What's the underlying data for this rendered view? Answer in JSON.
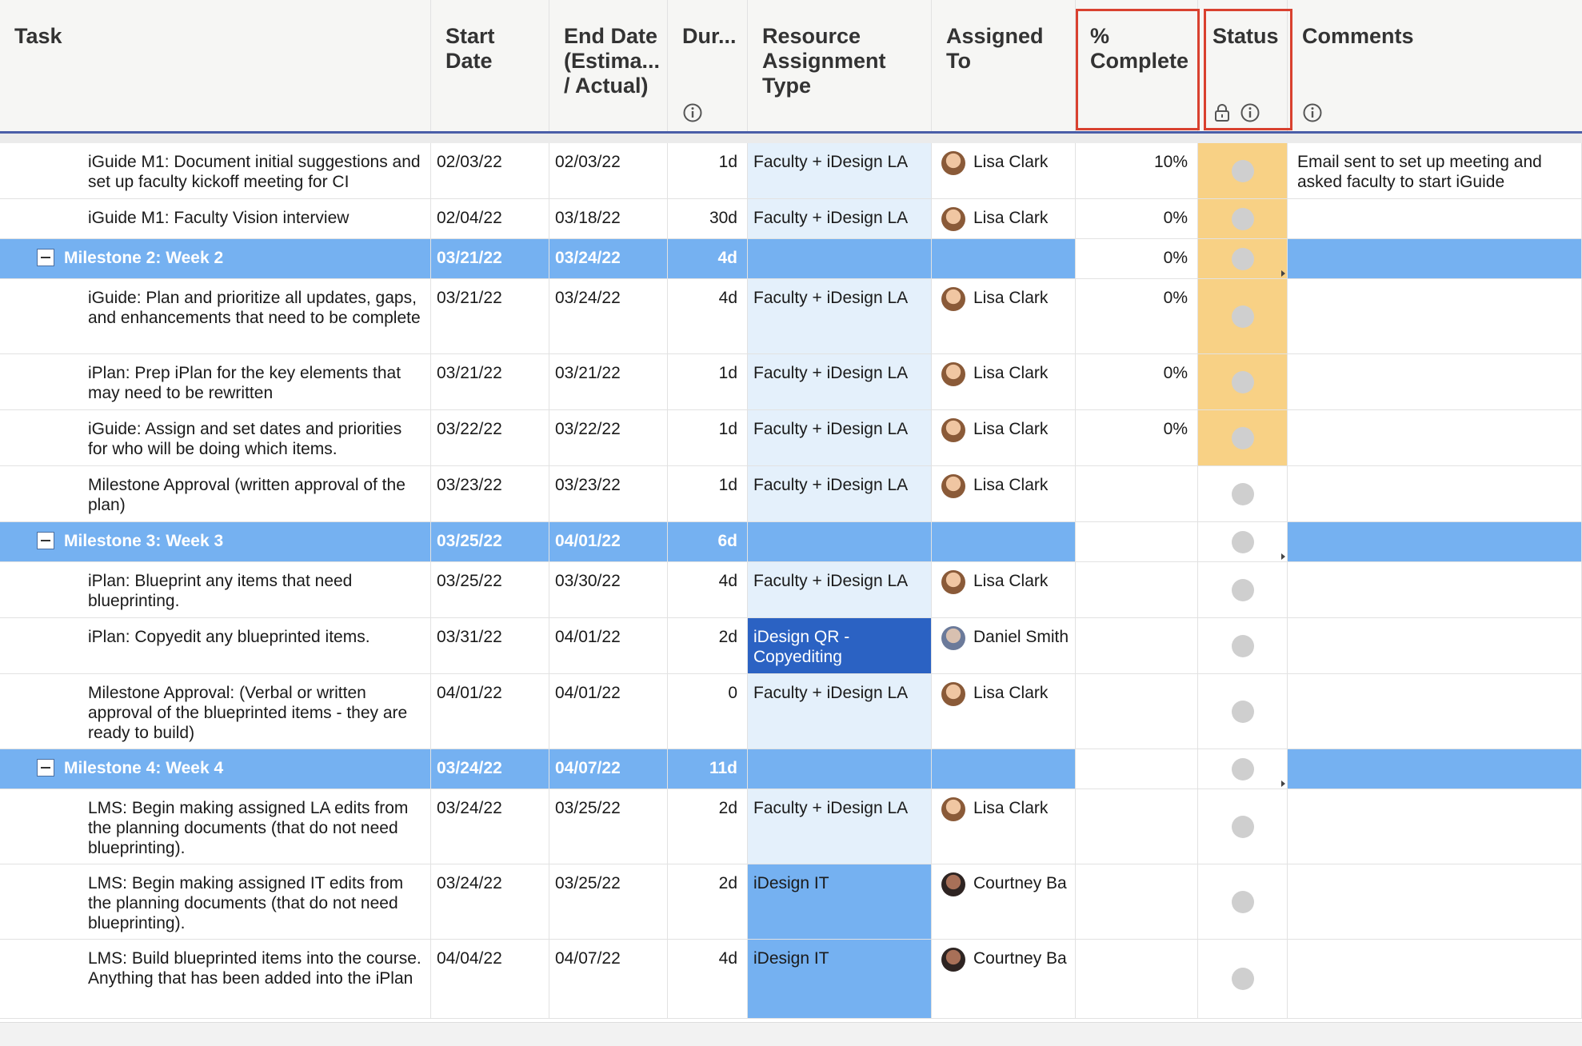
{
  "columns": {
    "task": "Task",
    "start_date": "Start\nDate",
    "end_date": "End Date\n(Estima...\n/ Actual)",
    "duration": "Dur...",
    "resource_type": "Resource\nAssignment\nType",
    "assigned_to": "Assigned\nTo",
    "percent_complete": "%\nComplete",
    "status": "Status",
    "comments": "Comments"
  },
  "icons": {
    "info": "info-circle-icon",
    "lock": "lock-icon",
    "collapse": "collapse-minus-icon",
    "avatar": "avatar",
    "status": "status-dot"
  },
  "colors": {
    "milestone_row": "#75b1f1",
    "resource_faculty": "#e4f0fb",
    "resource_qr": "#2b62c3",
    "resource_it": "#75b1f1",
    "status_highlight": "#f8d185",
    "header_highlight": "#d9412f",
    "header_border": "#4a5ea8"
  },
  "rows": [
    {
      "kind": "task",
      "task": "iGuide M1: Document initial suggestions and set up faculty kickoff meeting for CI",
      "start": "02/03/22",
      "end": "02/03/22",
      "duration": "1d",
      "resource": "Faculty + iDesign LA",
      "assigned": "Lisa Clark",
      "percent": "10%",
      "comments": "Email sent to set up meeting and asked faculty to start iGuide"
    },
    {
      "kind": "task",
      "task": "iGuide M1: Faculty Vision interview",
      "start": "02/04/22",
      "end": "03/18/22",
      "duration": "30d",
      "resource": "Faculty + iDesign LA",
      "assigned": "Lisa Clark",
      "percent": "0%",
      "comments": ""
    },
    {
      "kind": "milestone",
      "task": "Milestone 2: Week 2",
      "start": "03/21/22",
      "end": "03/24/22",
      "duration": "4d",
      "percent": "0%"
    },
    {
      "kind": "task",
      "task": "iGuide: Plan and prioritize all updates, gaps, and enhancements that need to be complete",
      "start": "03/21/22",
      "end": "03/24/22",
      "duration": "4d",
      "resource": "Faculty + iDesign LA",
      "assigned": "Lisa Clark",
      "percent": "0%",
      "comments": ""
    },
    {
      "kind": "task",
      "task": "iPlan: Prep iPlan for the key elements that may need to be rewritten",
      "start": "03/21/22",
      "end": "03/21/22",
      "duration": "1d",
      "resource": "Faculty + iDesign LA",
      "assigned": "Lisa Clark",
      "percent": "0%",
      "comments": ""
    },
    {
      "kind": "task",
      "task": "iGuide: Assign and set dates and priorities for who will be doing which items.",
      "start": "03/22/22",
      "end": "03/22/22",
      "duration": "1d",
      "resource": "Faculty + iDesign LA",
      "assigned": "Lisa Clark",
      "percent": "0%",
      "comments": ""
    },
    {
      "kind": "task",
      "task": "Milestone Approval (written approval of the plan)",
      "start": "03/23/22",
      "end": "03/23/22",
      "duration": "1d",
      "resource": "Faculty + iDesign LA",
      "assigned": "Lisa Clark",
      "percent": "",
      "comments": ""
    },
    {
      "kind": "milestone",
      "task": "Milestone 3: Week 3",
      "start": "03/25/22",
      "end": "04/01/22",
      "duration": "6d",
      "percent": ""
    },
    {
      "kind": "task",
      "task": "iPlan: Blueprint any items that need blueprinting.",
      "start": "03/25/22",
      "end": "03/30/22",
      "duration": "4d",
      "resource": "Faculty + iDesign LA",
      "assigned": "Lisa Clark",
      "percent": "",
      "comments": ""
    },
    {
      "kind": "task",
      "task": "iPlan: Copyedit any blueprinted items.",
      "start": "03/31/22",
      "end": "04/01/22",
      "duration": "2d",
      "resource": "iDesign QR - Copyediting",
      "assigned": "Daniel Smith",
      "percent": "",
      "comments": ""
    },
    {
      "kind": "task",
      "task": "Milestone Approval: (Verbal or written approval of the blueprinted items - they are ready to build)",
      "start": "04/01/22",
      "end": "04/01/22",
      "duration": "0",
      "resource": "Faculty + iDesign LA",
      "assigned": "Lisa Clark",
      "percent": "",
      "comments": ""
    },
    {
      "kind": "milestone",
      "task": "Milestone 4: Week 4",
      "start": "03/24/22",
      "end": "04/07/22",
      "duration": "11d",
      "percent": ""
    },
    {
      "kind": "task",
      "task": "LMS: Begin making assigned LA edits from the planning documents (that do not need blueprinting).",
      "start": "03/24/22",
      "end": "03/25/22",
      "duration": "2d",
      "resource": "Faculty + iDesign LA",
      "assigned": "Lisa Clark",
      "percent": "",
      "comments": ""
    },
    {
      "kind": "task",
      "task": "LMS: Begin making assigned IT edits from the planning documents (that do not need blueprinting).",
      "start": "03/24/22",
      "end": "03/25/22",
      "duration": "2d",
      "resource": "iDesign IT",
      "assigned": "Courtney Ba",
      "percent": "",
      "comments": ""
    },
    {
      "kind": "task",
      "task": "LMS: Build blueprinted items into the course. Anything that has been added into the iPlan",
      "start": "04/04/22",
      "end": "04/07/22",
      "duration": "4d",
      "resource": "iDesign IT",
      "assigned": "Courtney Ba",
      "percent": "",
      "comments": ""
    }
  ]
}
